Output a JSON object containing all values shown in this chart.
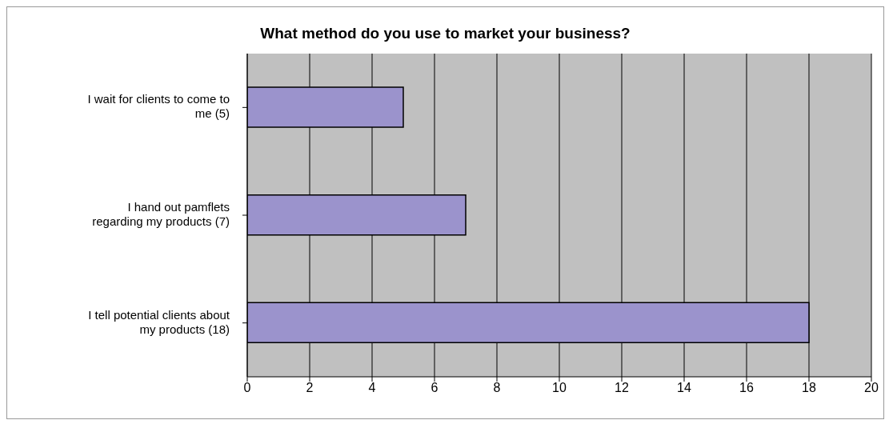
{
  "chart_data": {
    "type": "bar",
    "orientation": "horizontal",
    "title": "What method do you use to market your business?",
    "categories": [
      "I wait for clients to come to me (5)",
      "I hand out pamflets regarding my products (7)",
      "I tell potential clients about my products (18)"
    ],
    "values": [
      5,
      7,
      18
    ],
    "color": "#9b93cc",
    "xlim": [
      0,
      20
    ],
    "xticks": [
      0,
      2,
      4,
      6,
      8,
      10,
      12,
      14,
      16,
      18,
      20
    ],
    "grid": "x",
    "legend": false
  }
}
